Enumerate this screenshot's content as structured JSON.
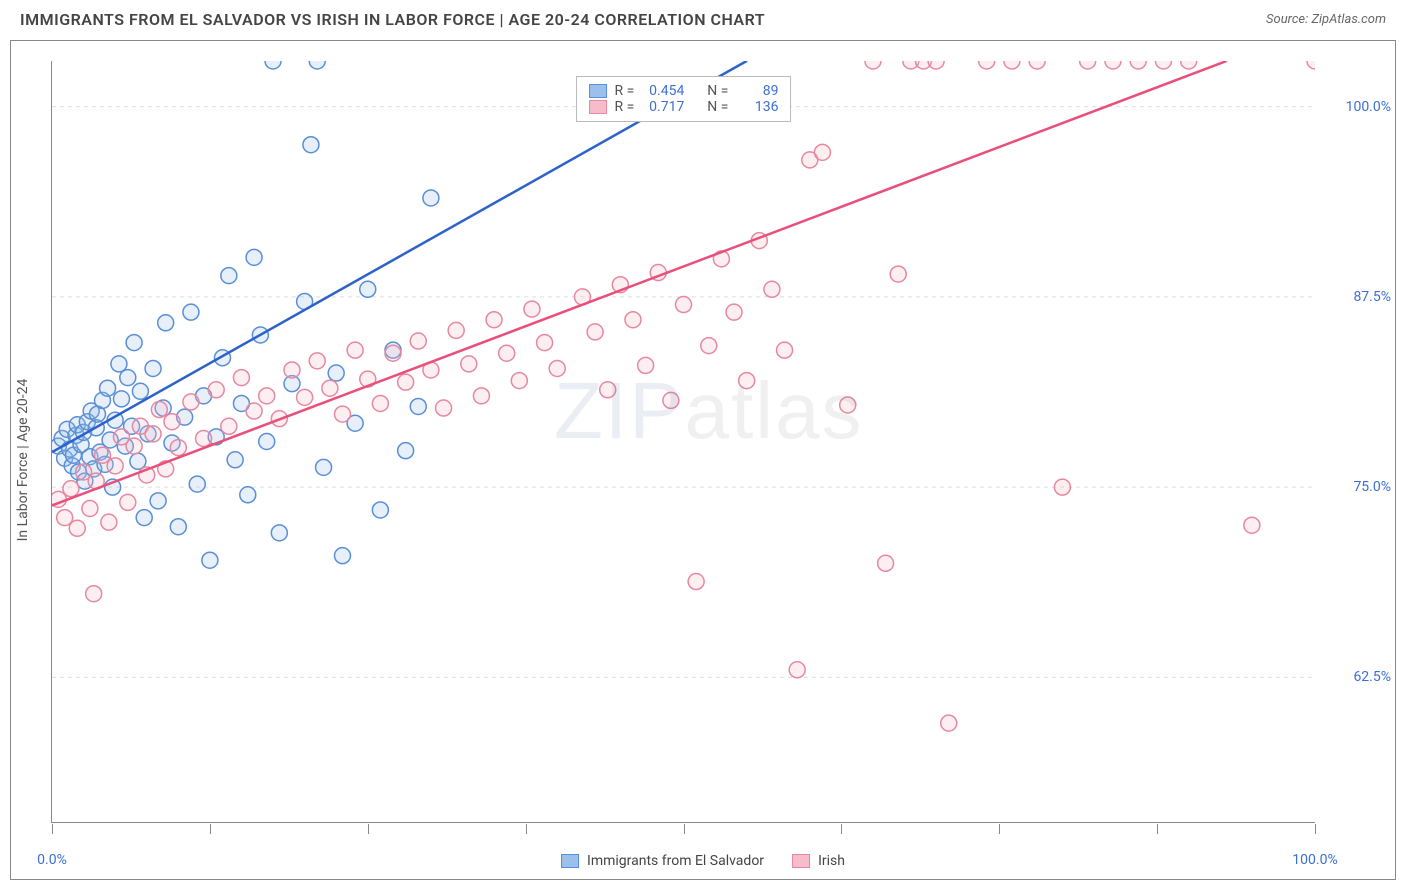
{
  "header": {
    "title": "IMMIGRANTS FROM EL SALVADOR VS IRISH IN LABOR FORCE | AGE 20-24 CORRELATION CHART",
    "source_label": "Source:",
    "source_value": "ZipAtlas.com"
  },
  "chart": {
    "type": "scatter",
    "y_axis_label": "In Labor Force | Age 20-24",
    "background_color": "#ffffff",
    "grid_color": "#dddddd",
    "axis_color": "#888888",
    "tick_label_color": "#3b6fd6",
    "xlim": [
      0,
      100
    ],
    "ylim": [
      53,
      103
    ],
    "x_ticks": [
      0,
      12.5,
      25,
      37.5,
      50,
      62.5,
      75,
      87.5,
      100
    ],
    "x_tick_labels": {
      "0": "0.0%",
      "100": "100.0%"
    },
    "y_ticks": [
      62.5,
      75.0,
      87.5,
      100.0
    ],
    "y_tick_labels": [
      "62.5%",
      "75.0%",
      "87.5%",
      "100.0%"
    ],
    "marker_radius": 8,
    "marker_stroke_width": 1.5,
    "marker_fill_opacity": 0.25,
    "line_width": 2.5,
    "watermark_text_1": "ZIP",
    "watermark_text_2": "atlas",
    "series": [
      {
        "id": "el_salvador",
        "label": "Immigrants from El Salvador",
        "color_stroke": "#5a8fd6",
        "color_fill": "#9ac0eb",
        "line_color": "#2d63c8",
        "R": "0.454",
        "N": "89",
        "regression": {
          "x1": 0,
          "y1": 77.3,
          "x2": 55,
          "y2": 103,
          "dashed_extend_to_x": 82
        },
        "points": [
          [
            0.5,
            77.7
          ],
          [
            0.8,
            78.2
          ],
          [
            1.0,
            76.9
          ],
          [
            1.2,
            78.8
          ],
          [
            1.4,
            77.5
          ],
          [
            1.6,
            76.4
          ],
          [
            1.7,
            77.1
          ],
          [
            1.9,
            78.4
          ],
          [
            2.0,
            79.1
          ],
          [
            2.1,
            76.0
          ],
          [
            2.3,
            77.8
          ],
          [
            2.5,
            78.6
          ],
          [
            2.6,
            75.4
          ],
          [
            2.8,
            79.3
          ],
          [
            3.0,
            77.0
          ],
          [
            3.1,
            80.0
          ],
          [
            3.3,
            76.2
          ],
          [
            3.5,
            78.9
          ],
          [
            3.6,
            79.8
          ],
          [
            3.8,
            77.3
          ],
          [
            4.0,
            80.7
          ],
          [
            4.2,
            76.5
          ],
          [
            4.4,
            81.5
          ],
          [
            4.6,
            78.1
          ],
          [
            4.8,
            75.0
          ],
          [
            5.0,
            79.4
          ],
          [
            5.3,
            83.1
          ],
          [
            5.5,
            80.8
          ],
          [
            5.8,
            77.7
          ],
          [
            6.0,
            82.2
          ],
          [
            6.3,
            79.0
          ],
          [
            6.5,
            84.5
          ],
          [
            6.8,
            76.7
          ],
          [
            7.0,
            81.3
          ],
          [
            7.3,
            73.0
          ],
          [
            7.6,
            78.5
          ],
          [
            8.0,
            82.8
          ],
          [
            8.4,
            74.1
          ],
          [
            8.8,
            80.2
          ],
          [
            9.0,
            85.8
          ],
          [
            9.5,
            77.9
          ],
          [
            10.0,
            72.4
          ],
          [
            10.5,
            79.6
          ],
          [
            11.0,
            86.5
          ],
          [
            11.5,
            75.2
          ],
          [
            12.0,
            81.0
          ],
          [
            12.5,
            70.2
          ],
          [
            13.0,
            78.3
          ],
          [
            13.5,
            83.5
          ],
          [
            14.0,
            88.9
          ],
          [
            14.5,
            76.8
          ],
          [
            15.0,
            80.5
          ],
          [
            15.5,
            74.5
          ],
          [
            16.0,
            90.1
          ],
          [
            16.5,
            85.0
          ],
          [
            17.0,
            78.0
          ],
          [
            17.5,
            103.0
          ],
          [
            18.0,
            72.0
          ],
          [
            19.0,
            81.8
          ],
          [
            20.0,
            87.2
          ],
          [
            20.5,
            97.5
          ],
          [
            21.0,
            103.0
          ],
          [
            21.5,
            76.3
          ],
          [
            22.5,
            82.5
          ],
          [
            23.0,
            70.5
          ],
          [
            24.0,
            79.2
          ],
          [
            25.0,
            88.0
          ],
          [
            26.0,
            73.5
          ],
          [
            27.0,
            84.0
          ],
          [
            28.0,
            77.4
          ],
          [
            29.0,
            80.3
          ],
          [
            30.0,
            94.0
          ]
        ]
      },
      {
        "id": "irish",
        "label": "Irish",
        "color_stroke": "#e688a0",
        "color_fill": "#f6bccb",
        "line_color": "#e94f7a",
        "R": "0.717",
        "N": "136",
        "regression": {
          "x1": 0,
          "y1": 73.8,
          "x2": 93,
          "y2": 103
        },
        "points": [
          [
            0.5,
            74.2
          ],
          [
            1.0,
            73.0
          ],
          [
            1.5,
            74.9
          ],
          [
            2.0,
            72.3
          ],
          [
            2.5,
            76.0
          ],
          [
            3.0,
            73.6
          ],
          [
            3.3,
            68.0
          ],
          [
            3.5,
            75.4
          ],
          [
            4.0,
            77.1
          ],
          [
            4.5,
            72.7
          ],
          [
            5.0,
            76.4
          ],
          [
            5.5,
            78.3
          ],
          [
            6.0,
            74.0
          ],
          [
            6.5,
            77.7
          ],
          [
            7.0,
            79.0
          ],
          [
            7.5,
            75.8
          ],
          [
            8.0,
            78.5
          ],
          [
            8.5,
            80.1
          ],
          [
            9.0,
            76.2
          ],
          [
            9.5,
            79.3
          ],
          [
            10.0,
            77.6
          ],
          [
            11.0,
            80.6
          ],
          [
            12.0,
            78.2
          ],
          [
            13.0,
            81.4
          ],
          [
            14.0,
            79.0
          ],
          [
            15.0,
            82.2
          ],
          [
            16.0,
            80.0
          ],
          [
            17.0,
            81.0
          ],
          [
            18.0,
            79.5
          ],
          [
            19.0,
            82.7
          ],
          [
            20.0,
            80.9
          ],
          [
            21.0,
            83.3
          ],
          [
            22.0,
            81.5
          ],
          [
            23.0,
            79.8
          ],
          [
            24.0,
            84.0
          ],
          [
            25.0,
            82.1
          ],
          [
            26.0,
            80.5
          ],
          [
            27.0,
            83.8
          ],
          [
            28.0,
            81.9
          ],
          [
            29.0,
            84.6
          ],
          [
            30.0,
            82.7
          ],
          [
            31.0,
            80.2
          ],
          [
            32.0,
            85.3
          ],
          [
            33.0,
            83.1
          ],
          [
            34.0,
            81.0
          ],
          [
            35.0,
            86.0
          ],
          [
            36.0,
            83.8
          ],
          [
            37.0,
            82.0
          ],
          [
            38.0,
            86.7
          ],
          [
            39.0,
            84.5
          ],
          [
            40.0,
            82.8
          ],
          [
            42.0,
            87.5
          ],
          [
            43.0,
            85.2
          ],
          [
            44.0,
            81.4
          ],
          [
            45.0,
            88.3
          ],
          [
            46.0,
            86.0
          ],
          [
            47.0,
            83.0
          ],
          [
            48.0,
            89.1
          ],
          [
            49.0,
            80.7
          ],
          [
            50.0,
            87.0
          ],
          [
            51.0,
            68.8
          ],
          [
            52.0,
            84.3
          ],
          [
            53.0,
            90.0
          ],
          [
            54.0,
            86.5
          ],
          [
            55.0,
            82.0
          ],
          [
            56.0,
            91.2
          ],
          [
            57.0,
            88.0
          ],
          [
            58.0,
            84.0
          ],
          [
            59.0,
            63.0
          ],
          [
            60.0,
            96.5
          ],
          [
            61.0,
            97.0
          ],
          [
            63.0,
            80.4
          ],
          [
            65.0,
            103.0
          ],
          [
            66.0,
            70.0
          ],
          [
            67.0,
            89.0
          ],
          [
            68.0,
            103.0
          ],
          [
            69.0,
            103.0
          ],
          [
            70.0,
            103.0
          ],
          [
            71.0,
            59.5
          ],
          [
            74.0,
            103.0
          ],
          [
            76.0,
            103.0
          ],
          [
            78.0,
            103.0
          ],
          [
            80.0,
            75.0
          ],
          [
            82.0,
            103.0
          ],
          [
            84.0,
            103.0
          ],
          [
            86.0,
            103.0
          ],
          [
            88.0,
            103.0
          ],
          [
            90.0,
            103.0
          ],
          [
            95.0,
            72.5
          ],
          [
            100.0,
            103.0
          ]
        ]
      }
    ],
    "legend_bottom": [
      {
        "label": "Immigrants from El Salvador",
        "stroke": "#5a8fd6",
        "fill": "#9ac0eb"
      },
      {
        "label": "Irish",
        "stroke": "#e688a0",
        "fill": "#f6bccb"
      }
    ]
  }
}
